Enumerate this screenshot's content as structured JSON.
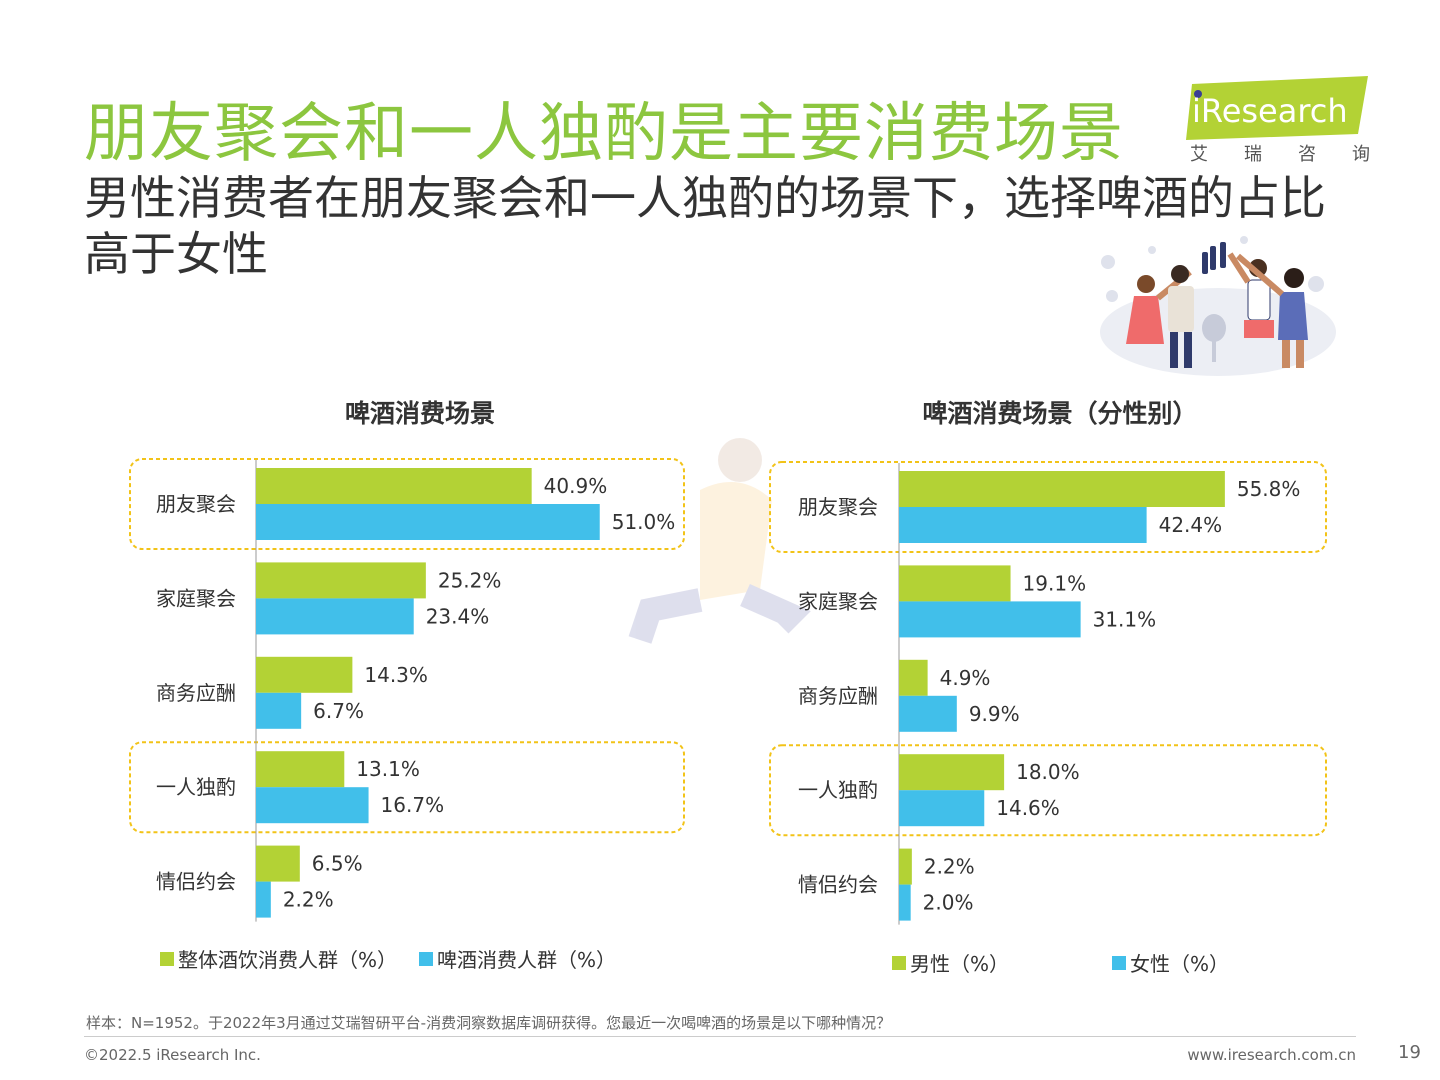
{
  "header": {
    "title": "朋友聚会和一人独酌是主要消费场景",
    "subtitle": "男性消费者在朋友聚会和一人独酌的场景下，选择啤酒的占比高于女性"
  },
  "logo": {
    "brand": "iResearch",
    "cn_chars": [
      "艾",
      "瑞",
      "咨",
      "询"
    ]
  },
  "chart_data": [
    {
      "type": "bar",
      "orientation": "horizontal",
      "title": "啤酒消费场景",
      "categories": [
        "朋友聚会",
        "家庭聚会",
        "商务应酬",
        "一人独酌",
        "情侣约会"
      ],
      "series": [
        {
          "name": "整体酒饮消费人群（%）",
          "color": "#b3d235",
          "values": [
            40.9,
            25.2,
            14.3,
            13.1,
            6.5
          ],
          "labels": [
            "40.9%",
            "25.2%",
            "14.3%",
            "13.1%",
            "6.5%"
          ]
        },
        {
          "name": "啤酒消费人群（%）",
          "color": "#41bfea",
          "values": [
            51.0,
            23.4,
            6.7,
            16.7,
            2.2
          ],
          "labels": [
            "51.0%",
            "23.4%",
            "6.7%",
            "16.7%",
            "2.2%"
          ]
        }
      ],
      "highlighted_categories": [
        "朋友聚会",
        "一人独酌"
      ]
    },
    {
      "type": "bar",
      "orientation": "horizontal",
      "title": "啤酒消费场景（分性别）",
      "categories": [
        "朋友聚会",
        "家庭聚会",
        "商务应酬",
        "一人独酌",
        "情侣约会"
      ],
      "series": [
        {
          "name": "男性（%）",
          "color": "#b3d235",
          "values": [
            55.8,
            19.1,
            4.9,
            18.0,
            2.2
          ],
          "labels": [
            "55.8%",
            "19.1%",
            "4.9%",
            "18.0%",
            "2.2%"
          ]
        },
        {
          "name": "女性（%）",
          "color": "#41bfea",
          "values": [
            42.4,
            31.1,
            9.9,
            14.6,
            2.0
          ],
          "labels": [
            "42.4%",
            "31.1%",
            "9.9%",
            "14.6%",
            "2.0%"
          ]
        }
      ],
      "highlighted_categories": [
        "朋友聚会",
        "一人独酌"
      ]
    }
  ],
  "footer": {
    "note": "样本：N=1952。于2022年3月通过艾瑞智研平台-消费洞察数据库调研获得。您最近一次喝啤酒的场景是以下哪种情况？",
    "copyright": "©2022.5 iResearch Inc.",
    "website": "www.iresearch.com.cn",
    "page_number": "19"
  }
}
